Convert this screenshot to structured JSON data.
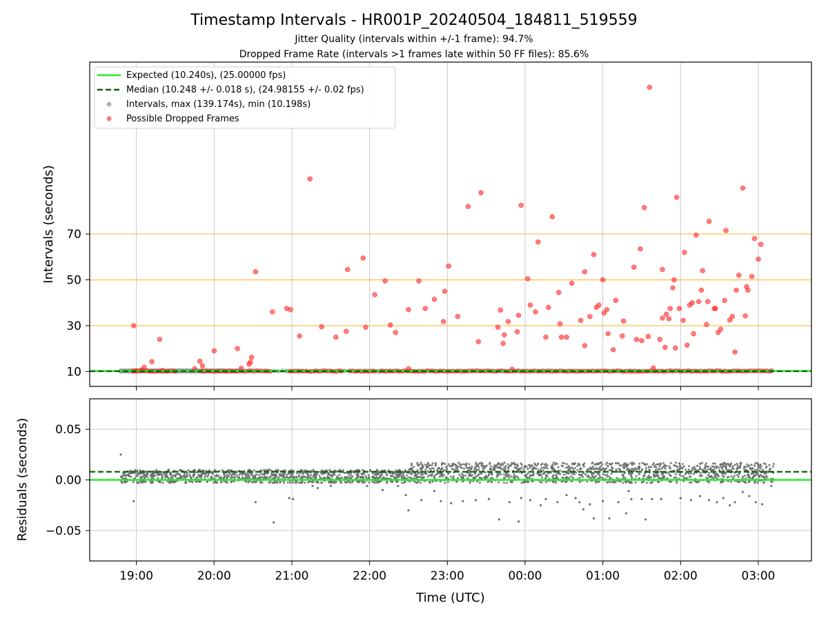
{
  "title": "Timestamp Intervals - HR001P_20240504_184811_519559",
  "subtitle_1": "Jitter Quality (intervals within +/-1 frame): 94.7%",
  "subtitle_2": "Dropped Frame Rate (intervals >1 frames late within 50 FF files): 85.6%",
  "colors": {
    "expected": "#22ee22",
    "median": "#006400",
    "intervals": "#888888",
    "dropped": "#ff2222",
    "threshold": "#ffc04d",
    "grid": "#c8c8c8",
    "residuals": "#6e6e6e"
  },
  "chart_data": [
    {
      "type": "scatter",
      "title": "Timestamp Intervals - HR001P_20240504_184811_519559",
      "ylabel": "Intervals (seconds)",
      "xlabel": "",
      "x_ticks": [
        "19:00",
        "20:00",
        "21:00",
        "22:00",
        "23:00",
        "00:00",
        "01:00",
        "02:00",
        "03:00"
      ],
      "x_range": [
        "18:24",
        "03:41"
      ],
      "y_ticks": [
        10,
        30,
        50,
        70
      ],
      "y_range": [
        3.5,
        145
      ],
      "grid": "vertical",
      "threshold_lines": [
        30,
        50,
        70
      ],
      "legend": {
        "position": "top-left",
        "entries": [
          {
            "label": "Expected (10.240s), (25.00000 fps)",
            "kind": "solid-line"
          },
          {
            "label": "Median (10.248 +/- 0.018 s), (24.98155 +/- 0.02 fps)",
            "kind": "dashed-line"
          },
          {
            "label": "Intervals, max (139.174s), min (10.198s)",
            "kind": "gray-dot"
          },
          {
            "label": "Possible Dropped Frames",
            "kind": "red-dot"
          }
        ]
      },
      "expected_interval": 10.24,
      "median_interval": 10.248,
      "baseline_intervals": {
        "start": "18:48",
        "end": "03:12",
        "value": 10.24
      },
      "dropped_frames": [
        {
          "time": "18:58",
          "value": 30
        },
        {
          "time": "18:58",
          "value": 10.2
        },
        {
          "time": "19:00",
          "value": 10.3
        },
        {
          "time": "19:04",
          "value": 10.6
        },
        {
          "time": "19:06",
          "value": 11.8
        },
        {
          "time": "19:12",
          "value": 14.3
        },
        {
          "time": "19:18",
          "value": 24
        },
        {
          "time": "19:20",
          "value": 10.4
        },
        {
          "time": "19:45",
          "value": 11.2
        },
        {
          "time": "19:49",
          "value": 14.5
        },
        {
          "time": "19:51",
          "value": 12.5
        },
        {
          "time": "20:00",
          "value": 19
        },
        {
          "time": "20:18",
          "value": 20
        },
        {
          "time": "20:21",
          "value": 11.4
        },
        {
          "time": "20:27",
          "value": 13.2
        },
        {
          "time": "20:28",
          "value": 14.1
        },
        {
          "time": "20:29",
          "value": 16.2
        },
        {
          "time": "20:32",
          "value": 53.5
        },
        {
          "time": "20:45",
          "value": 36
        },
        {
          "time": "20:56",
          "value": 37.5
        },
        {
          "time": "20:59",
          "value": 37
        },
        {
          "time": "21:06",
          "value": 25.5
        },
        {
          "time": "21:14",
          "value": 94
        },
        {
          "time": "21:23",
          "value": 29.5
        },
        {
          "time": "21:34",
          "value": 25
        },
        {
          "time": "21:42",
          "value": 27.5
        },
        {
          "time": "21:43",
          "value": 54.5
        },
        {
          "time": "21:55",
          "value": 59.5
        },
        {
          "time": "21:57",
          "value": 29.3
        },
        {
          "time": "22:04",
          "value": 43.5
        },
        {
          "time": "22:12",
          "value": 49.5
        },
        {
          "time": "22:16",
          "value": 30.3
        },
        {
          "time": "22:20",
          "value": 27
        },
        {
          "time": "22:30",
          "value": 37
        },
        {
          "time": "22:30",
          "value": 11.2
        },
        {
          "time": "22:38",
          "value": 49.5
        },
        {
          "time": "22:43",
          "value": 37.5
        },
        {
          "time": "22:50",
          "value": 41.5
        },
        {
          "time": "22:57",
          "value": 31.8
        },
        {
          "time": "22:58",
          "value": 45
        },
        {
          "time": "23:01",
          "value": 56
        },
        {
          "time": "23:08",
          "value": 34
        },
        {
          "time": "23:16",
          "value": 82
        },
        {
          "time": "23:24",
          "value": 23
        },
        {
          "time": "23:26",
          "value": 88
        },
        {
          "time": "23:39",
          "value": 29.3
        },
        {
          "time": "23:41",
          "value": 36.8
        },
        {
          "time": "23:43",
          "value": 22.3
        },
        {
          "time": "23:44",
          "value": 26
        },
        {
          "time": "23:47",
          "value": 31.8
        },
        {
          "time": "23:50",
          "value": 11
        },
        {
          "time": "23:54",
          "value": 27.3
        },
        {
          "time": "23:55",
          "value": 34.5
        },
        {
          "time": "23:57",
          "value": 82.5
        },
        {
          "time": "00:02",
          "value": 50.5
        },
        {
          "time": "00:04",
          "value": 39
        },
        {
          "time": "00:08",
          "value": 36
        },
        {
          "time": "00:10",
          "value": 66.5
        },
        {
          "time": "00:16",
          "value": 25
        },
        {
          "time": "00:18",
          "value": 38
        },
        {
          "time": "00:21",
          "value": 77.5
        },
        {
          "time": "00:26",
          "value": 44.5
        },
        {
          "time": "00:27",
          "value": 30.8
        },
        {
          "time": "00:28",
          "value": 25
        },
        {
          "time": "00:32",
          "value": 25
        },
        {
          "time": "00:36",
          "value": 48.5
        },
        {
          "time": "00:43",
          "value": 32.3
        },
        {
          "time": "00:46",
          "value": 53.5
        },
        {
          "time": "00:46",
          "value": 21.3
        },
        {
          "time": "00:50",
          "value": 34
        },
        {
          "time": "00:53",
          "value": 61
        },
        {
          "time": "00:55",
          "value": 38
        },
        {
          "time": "00:57",
          "value": 39
        },
        {
          "time": "01:00",
          "value": 50
        },
        {
          "time": "01:01",
          "value": 35.5
        },
        {
          "time": "01:03",
          "value": 37
        },
        {
          "time": "01:04",
          "value": 26.5
        },
        {
          "time": "01:08",
          "value": 19.5
        },
        {
          "time": "01:10",
          "value": 41
        },
        {
          "time": "01:15",
          "value": 25.5
        },
        {
          "time": "01:16",
          "value": 32
        },
        {
          "time": "01:24",
          "value": 55.5
        },
        {
          "time": "01:26",
          "value": 24
        },
        {
          "time": "01:29",
          "value": 63.5
        },
        {
          "time": "01:30",
          "value": 23.5
        },
        {
          "time": "01:32",
          "value": 81.5
        },
        {
          "time": "01:35",
          "value": 25.3
        },
        {
          "time": "01:36",
          "value": 134
        },
        {
          "time": "01:39",
          "value": 11.5
        },
        {
          "time": "01:44",
          "value": 24
        },
        {
          "time": "01:46",
          "value": 33.3
        },
        {
          "time": "01:46",
          "value": 54.5
        },
        {
          "time": "01:48",
          "value": 20.5
        },
        {
          "time": "01:49",
          "value": 35
        },
        {
          "time": "01:51",
          "value": 33
        },
        {
          "time": "01:52",
          "value": 37.5
        },
        {
          "time": "01:54",
          "value": 46.5
        },
        {
          "time": "01:55",
          "value": 50
        },
        {
          "time": "01:56",
          "value": 20.3
        },
        {
          "time": "01:57",
          "value": 86
        },
        {
          "time": "01:59",
          "value": 37.5
        },
        {
          "time": "02:02",
          "value": 32.3
        },
        {
          "time": "02:03",
          "value": 62
        },
        {
          "time": "02:05",
          "value": 21.5
        },
        {
          "time": "02:07",
          "value": 39
        },
        {
          "time": "02:09",
          "value": 40
        },
        {
          "time": "02:10",
          "value": 26.5
        },
        {
          "time": "02:12",
          "value": 69.5
        },
        {
          "time": "02:14",
          "value": 40.5
        },
        {
          "time": "02:16",
          "value": 45.5
        },
        {
          "time": "02:17",
          "value": 54
        },
        {
          "time": "02:20",
          "value": 30.5
        },
        {
          "time": "02:21",
          "value": 40.5
        },
        {
          "time": "02:22",
          "value": 75.5
        },
        {
          "time": "02:26",
          "value": 37.5
        },
        {
          "time": "02:27",
          "value": 37.5
        },
        {
          "time": "02:29",
          "value": 27
        },
        {
          "time": "02:31",
          "value": 28.5
        },
        {
          "time": "02:34",
          "value": 41
        },
        {
          "time": "02:35",
          "value": 71.5
        },
        {
          "time": "02:38",
          "value": 32.5
        },
        {
          "time": "02:40",
          "value": 34
        },
        {
          "time": "02:42",
          "value": 18.5
        },
        {
          "time": "02:43",
          "value": 45.5
        },
        {
          "time": "02:45",
          "value": 52
        },
        {
          "time": "02:48",
          "value": 90
        },
        {
          "time": "02:50",
          "value": 34.3
        },
        {
          "time": "02:51",
          "value": 47
        },
        {
          "time": "02:52",
          "value": 45.5
        },
        {
          "time": "02:55",
          "value": 51.5
        },
        {
          "time": "02:57",
          "value": 68
        },
        {
          "time": "03:00",
          "value": 59
        },
        {
          "time": "03:02",
          "value": 65.5
        }
      ]
    },
    {
      "type": "scatter",
      "ylabel": "Residuals (seconds)",
      "xlabel": "Time (UTC)",
      "x_ticks": [
        "19:00",
        "20:00",
        "21:00",
        "22:00",
        "23:00",
        "00:00",
        "01:00",
        "02:00",
        "03:00"
      ],
      "x_range": [
        "18:24",
        "03:41"
      ],
      "y_ticks": [
        "0.05",
        "0.00",
        "−0.05"
      ],
      "y_range": [
        -0.08,
        0.08
      ],
      "grid": "both",
      "expected_residual": 0.0,
      "median_residual": 0.008,
      "residual_bands": [
        {
          "start": "18:48",
          "end": "22:30",
          "low": 0.0,
          "high": 0.013
        },
        {
          "start": "22:30",
          "end": "03:12",
          "low": 0.0,
          "high": 0.02
        }
      ],
      "outliers": [
        {
          "time": "18:48",
          "value": 0.025
        },
        {
          "time": "18:58",
          "value": -0.021
        },
        {
          "time": "20:32",
          "value": -0.022
        },
        {
          "time": "20:46",
          "value": -0.042
        },
        {
          "time": "20:58",
          "value": -0.018
        },
        {
          "time": "21:01",
          "value": -0.019
        },
        {
          "time": "21:16",
          "value": -0.006
        },
        {
          "time": "21:20",
          "value": -0.008
        },
        {
          "time": "21:30",
          "value": -0.006
        },
        {
          "time": "21:58",
          "value": -0.006
        },
        {
          "time": "22:10",
          "value": -0.01
        },
        {
          "time": "22:22",
          "value": -0.006
        },
        {
          "time": "22:28",
          "value": -0.015
        },
        {
          "time": "22:30",
          "value": -0.03
        },
        {
          "time": "22:40",
          "value": -0.02
        },
        {
          "time": "22:50",
          "value": -0.011
        },
        {
          "time": "22:55",
          "value": -0.021
        },
        {
          "time": "23:03",
          "value": -0.023
        },
        {
          "time": "23:12",
          "value": -0.021
        },
        {
          "time": "23:22",
          "value": -0.02
        },
        {
          "time": "23:32",
          "value": -0.019
        },
        {
          "time": "23:40",
          "value": -0.039
        },
        {
          "time": "23:48",
          "value": -0.022
        },
        {
          "time": "23:55",
          "value": -0.041
        },
        {
          "time": "23:57",
          "value": -0.018
        },
        {
          "time": "00:04",
          "value": -0.02
        },
        {
          "time": "00:12",
          "value": -0.025
        },
        {
          "time": "00:16",
          "value": -0.019
        },
        {
          "time": "00:25",
          "value": -0.022
        },
        {
          "time": "00:32",
          "value": -0.015
        },
        {
          "time": "00:39",
          "value": -0.018
        },
        {
          "time": "00:42",
          "value": -0.022
        },
        {
          "time": "00:45",
          "value": -0.029
        },
        {
          "time": "00:50",
          "value": -0.024
        },
        {
          "time": "00:53",
          "value": -0.038
        },
        {
          "time": "01:00",
          "value": -0.021
        },
        {
          "time": "01:05",
          "value": -0.038
        },
        {
          "time": "01:12",
          "value": -0.022
        },
        {
          "time": "01:18",
          "value": -0.033
        },
        {
          "time": "01:20",
          "value": -0.011
        },
        {
          "time": "01:22",
          "value": -0.019
        },
        {
          "time": "01:30",
          "value": -0.019
        },
        {
          "time": "01:33",
          "value": -0.039
        },
        {
          "time": "01:38",
          "value": -0.019
        },
        {
          "time": "01:45",
          "value": -0.019
        },
        {
          "time": "02:00",
          "value": -0.018
        },
        {
          "time": "02:08",
          "value": -0.02
        },
        {
          "time": "02:15",
          "value": -0.016
        },
        {
          "time": "02:22",
          "value": -0.02
        },
        {
          "time": "02:28",
          "value": -0.022
        },
        {
          "time": "02:33",
          "value": -0.018
        },
        {
          "time": "02:38",
          "value": -0.025
        },
        {
          "time": "02:42",
          "value": -0.022
        },
        {
          "time": "02:48",
          "value": -0.012
        },
        {
          "time": "02:53",
          "value": -0.016
        },
        {
          "time": "02:58",
          "value": -0.022
        },
        {
          "time": "03:03",
          "value": -0.024
        },
        {
          "time": "03:10",
          "value": -0.006
        }
      ]
    }
  ]
}
